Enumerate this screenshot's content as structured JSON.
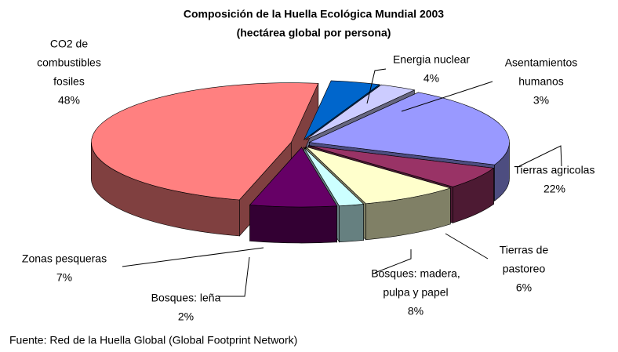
{
  "chart_data": {
    "type": "pie3d",
    "title": "Composición de la Huella Ecológica Mundial 2003",
    "subtitle": "(hectárea global por persona)",
    "categories": [
      [
        "CO2 de",
        "combustibles",
        "fosiles"
      ],
      [
        "Energia nuclear"
      ],
      [
        "Asentamientos",
        "humanos"
      ],
      [
        "Tierras agricolas"
      ],
      [
        "Tierras de",
        "pastoreo"
      ],
      [
        "Bosques: madera,",
        "pulpa y papel"
      ],
      [
        "Bosques: leña"
      ],
      [
        "Zonas pesqueras"
      ]
    ],
    "values": [
      48,
      4,
      3,
      22,
      6,
      8,
      2,
      7
    ],
    "value_labels": [
      "48%",
      "4%",
      "3%",
      "22%",
      "6%",
      "8%",
      "2%",
      "7%"
    ],
    "colors": [
      "#ff8080",
      "#0066cc",
      "#ccccff",
      "#9999ff",
      "#993366",
      "#ffffcc",
      "#ccffff",
      "#660066"
    ],
    "source": "Fuente:  Red de la Huella Global (Global Footprint Network)"
  }
}
